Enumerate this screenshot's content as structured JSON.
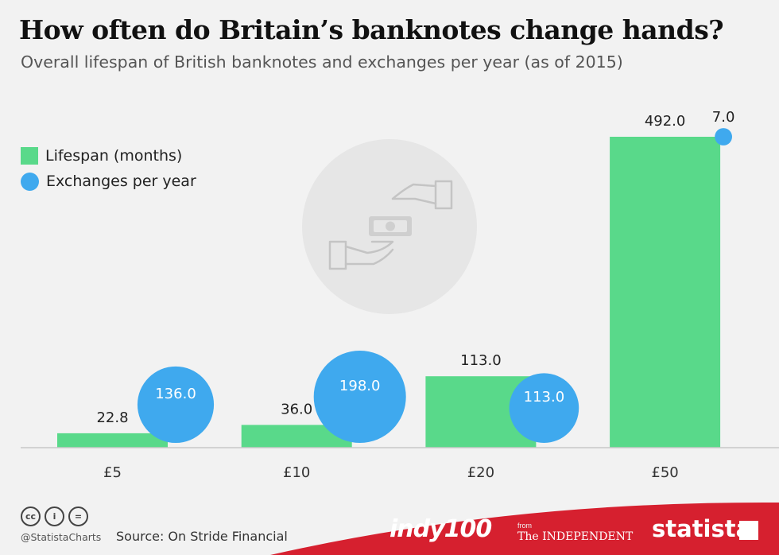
{
  "title": "How often do Britain’s banknotes change hands?",
  "subtitle": "Overall lifespan of British banknotes and exchanges per year (as of 2015)",
  "legend": [
    {
      "label": "Lifespan (months)",
      "shape": "square",
      "color": "#59d98a"
    },
    {
      "label": "Exchanges per year",
      "shape": "circle",
      "color": "#3fa9ee"
    }
  ],
  "chart_data": {
    "type": "bar",
    "categories": [
      "£5",
      "£10",
      "£20",
      "£50"
    ],
    "series": [
      {
        "name": "Lifespan (months)",
        "type": "bar",
        "color": "#59d98a",
        "values": [
          22.8,
          36.0,
          113.0,
          492.0
        ],
        "labels": [
          "22.8",
          "36.0",
          "113.0",
          "492.0"
        ]
      },
      {
        "name": "Exchanges per year",
        "type": "bubble",
        "color": "#3fa9ee",
        "values": [
          136.0,
          198.0,
          113.0,
          7.0
        ],
        "labels": [
          "136.0",
          "198.0",
          "113.0",
          "7.0"
        ]
      }
    ],
    "ylim": [
      0,
      492
    ],
    "grid": false,
    "legend_position": "top-left"
  },
  "footer": {
    "cc_icons": [
      "cc",
      "i",
      "="
    ],
    "handle": "@StatistaCharts",
    "source": "Source: On Stride Financial",
    "brand_indy": "indy100",
    "brand_from": "from",
    "brand_independent": "The INDEPENDENT",
    "brand_statista": "statista"
  },
  "colors": {
    "bar": "#59d98a",
    "bubble": "#3fa9ee",
    "footer_red": "#d6202f",
    "background": "#f2f2f2"
  },
  "icons": [
    "hand-exchange-icon",
    "pound-note-icon",
    "statista-logo-icon"
  ]
}
